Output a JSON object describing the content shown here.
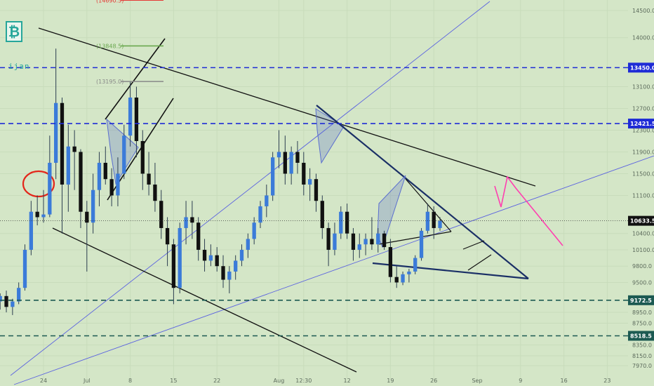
{
  "logo": {
    "glyph": "₿",
    "color": "#26a69a"
  },
  "username": "ijan",
  "chart_data": {
    "type": "candlestick",
    "title": "",
    "xlabel": "",
    "ylabel": "",
    "ylim": [
      7870,
      14800
    ],
    "y_ticks": [
      {
        "v": 14500,
        "label": "14500.0"
      },
      {
        "v": 14000,
        "label": "14000.0"
      },
      {
        "v": 13100,
        "label": "13100.0"
      },
      {
        "v": 12700,
        "label": "12700.0"
      },
      {
        "v": 12300,
        "label": "12300.0"
      },
      {
        "v": 11900,
        "label": "11900.0"
      },
      {
        "v": 11500,
        "label": "11500.0"
      },
      {
        "v": 11100,
        "label": "11100.0"
      },
      {
        "v": 10400,
        "label": "10400.0"
      },
      {
        "v": 10100,
        "label": "10100.0"
      },
      {
        "v": 9800,
        "label": "9800.0"
      },
      {
        "v": 9500,
        "label": "9500.0"
      },
      {
        "v": 8950,
        "label": "8950.0"
      },
      {
        "v": 8750,
        "label": "8750.0"
      },
      {
        "v": 8350,
        "label": "8350.0"
      },
      {
        "v": 8150,
        "label": "8150.0"
      },
      {
        "v": 7970,
        "label": "7970.0"
      }
    ],
    "x_ticks": [
      {
        "day": 24,
        "label": "24"
      },
      {
        "day": 31,
        "label": "Jul"
      },
      {
        "day": 38,
        "label": "8"
      },
      {
        "day": 45,
        "label": "15"
      },
      {
        "day": 52,
        "label": "22"
      },
      {
        "day": 62,
        "label": "Aug"
      },
      {
        "day": 66,
        "label": "12:30"
      },
      {
        "day": 73,
        "label": "12"
      },
      {
        "day": 80,
        "label": "19"
      },
      {
        "day": 87,
        "label": "26"
      },
      {
        "day": 94,
        "label": "Sep"
      },
      {
        "day": 101,
        "label": "9"
      },
      {
        "day": 108,
        "label": "16"
      },
      {
        "day": 115,
        "label": "23"
      }
    ],
    "horizontal_levels": [
      {
        "value": 13450.0,
        "label": "13450.0",
        "style": "dashed",
        "color": "#1e2bd6"
      },
      {
        "value": 12421.5,
        "label": "12421.5",
        "style": "dashed",
        "color": "#1e2bd6"
      },
      {
        "value": 9172.5,
        "label": "9172.5",
        "style": "dashed",
        "color": "#1c5a52"
      },
      {
        "value": 8518.5,
        "label": "8518.5",
        "style": "dashed",
        "color": "#1c5a52"
      }
    ],
    "current_price": {
      "value": 10633.5,
      "label": "10633.5"
    },
    "price_annotations": [
      {
        "value": 14690.5,
        "label": "(14690.5)",
        "color": "#e53935"
      },
      {
        "value": 13848.5,
        "label": "(13848.5)",
        "color": "#6aa84f"
      },
      {
        "value": 13195.0,
        "label": "(13195.0)",
        "color": "#888888"
      }
    ],
    "candles": [
      {
        "day": 17,
        "o": 9150,
        "h": 9300,
        "l": 9000,
        "c": 9250
      },
      {
        "day": 18,
        "o": 9250,
        "h": 9350,
        "l": 8950,
        "c": 9050
      },
      {
        "day": 19,
        "o": 9050,
        "h": 9200,
        "l": 8900,
        "c": 9150
      },
      {
        "day": 20,
        "o": 9150,
        "h": 9500,
        "l": 9100,
        "c": 9400
      },
      {
        "day": 21,
        "o": 9400,
        "h": 10200,
        "l": 9350,
        "c": 10100
      },
      {
        "day": 22,
        "o": 10100,
        "h": 11000,
        "l": 10000,
        "c": 10800
      },
      {
        "day": 23,
        "o": 10800,
        "h": 11100,
        "l": 10550,
        "c": 10700
      },
      {
        "day": 24,
        "o": 10700,
        "h": 11200,
        "l": 10600,
        "c": 10750
      },
      {
        "day": 25,
        "o": 10750,
        "h": 12200,
        "l": 10700,
        "c": 11700
      },
      {
        "day": 26,
        "o": 11700,
        "h": 13800,
        "l": 11400,
        "c": 12800
      },
      {
        "day": 27,
        "o": 12800,
        "h": 12900,
        "l": 10400,
        "c": 11300
      },
      {
        "day": 28,
        "o": 11300,
        "h": 12400,
        "l": 10800,
        "c": 12000
      },
      {
        "day": 29,
        "o": 12000,
        "h": 12300,
        "l": 11200,
        "c": 11900
      },
      {
        "day": 30,
        "o": 11900,
        "h": 11950,
        "l": 10500,
        "c": 10800
      },
      {
        "day": 31,
        "o": 10800,
        "h": 11000,
        "l": 9700,
        "c": 10600
      },
      {
        "day": 32,
        "o": 10600,
        "h": 11500,
        "l": 10400,
        "c": 11200
      },
      {
        "day": 33,
        "o": 11200,
        "h": 11900,
        "l": 10900,
        "c": 11700
      },
      {
        "day": 34,
        "o": 11700,
        "h": 12000,
        "l": 11300,
        "c": 11400
      },
      {
        "day": 35,
        "o": 11400,
        "h": 11600,
        "l": 10900,
        "c": 11100
      },
      {
        "day": 36,
        "o": 11100,
        "h": 11800,
        "l": 10900,
        "c": 11500
      },
      {
        "day": 37,
        "o": 11500,
        "h": 12400,
        "l": 11400,
        "c": 12200
      },
      {
        "day": 38,
        "o": 12200,
        "h": 13200,
        "l": 12000,
        "c": 12900
      },
      {
        "day": 39,
        "o": 12900,
        "h": 13100,
        "l": 11800,
        "c": 12100
      },
      {
        "day": 40,
        "o": 12100,
        "h": 12300,
        "l": 11200,
        "c": 11500
      },
      {
        "day": 41,
        "o": 11500,
        "h": 11900,
        "l": 11100,
        "c": 11300
      },
      {
        "day": 42,
        "o": 11300,
        "h": 11700,
        "l": 10800,
        "c": 11000
      },
      {
        "day": 43,
        "o": 11000,
        "h": 11200,
        "l": 10300,
        "c": 10500
      },
      {
        "day": 44,
        "o": 10500,
        "h": 10700,
        "l": 9800,
        "c": 10200
      },
      {
        "day": 45,
        "o": 10200,
        "h": 10300,
        "l": 9100,
        "c": 9400
      },
      {
        "day": 46,
        "o": 9400,
        "h": 10600,
        "l": 9300,
        "c": 10500
      },
      {
        "day": 47,
        "o": 10500,
        "h": 11000,
        "l": 10200,
        "c": 10700
      },
      {
        "day": 48,
        "o": 10700,
        "h": 11000,
        "l": 10300,
        "c": 10600
      },
      {
        "day": 49,
        "o": 10600,
        "h": 10700,
        "l": 9900,
        "c": 10100
      },
      {
        "day": 50,
        "o": 10100,
        "h": 10300,
        "l": 9700,
        "c": 9900
      },
      {
        "day": 51,
        "o": 9900,
        "h": 10200,
        "l": 9800,
        "c": 10000
      },
      {
        "day": 52,
        "o": 10000,
        "h": 10150,
        "l": 9700,
        "c": 9800
      },
      {
        "day": 53,
        "o": 9800,
        "h": 10000,
        "l": 9400,
        "c": 9550
      },
      {
        "day": 54,
        "o": 9550,
        "h": 9800,
        "l": 9300,
        "c": 9700
      },
      {
        "day": 55,
        "o": 9700,
        "h": 10000,
        "l": 9550,
        "c": 9900
      },
      {
        "day": 56,
        "o": 9900,
        "h": 10200,
        "l": 9800,
        "c": 10100
      },
      {
        "day": 57,
        "o": 10100,
        "h": 10400,
        "l": 9950,
        "c": 10300
      },
      {
        "day": 58,
        "o": 10300,
        "h": 10700,
        "l": 10200,
        "c": 10600
      },
      {
        "day": 59,
        "o": 10600,
        "h": 11000,
        "l": 10500,
        "c": 10900
      },
      {
        "day": 60,
        "o": 10900,
        "h": 11300,
        "l": 10700,
        "c": 11100
      },
      {
        "day": 61,
        "o": 11100,
        "h": 11900,
        "l": 11000,
        "c": 11800
      },
      {
        "day": 62,
        "o": 11800,
        "h": 12300,
        "l": 11600,
        "c": 11900
      },
      {
        "day": 63,
        "o": 11900,
        "h": 12200,
        "l": 11300,
        "c": 11500
      },
      {
        "day": 64,
        "o": 11500,
        "h": 12000,
        "l": 11300,
        "c": 11900
      },
      {
        "day": 65,
        "o": 11900,
        "h": 12100,
        "l": 11500,
        "c": 11700
      },
      {
        "day": 66,
        "o": 11700,
        "h": 11900,
        "l": 11100,
        "c": 11300
      },
      {
        "day": 67,
        "o": 11300,
        "h": 11600,
        "l": 11000,
        "c": 11400
      },
      {
        "day": 68,
        "o": 11400,
        "h": 11500,
        "l": 10800,
        "c": 11000
      },
      {
        "day": 69,
        "o": 11000,
        "h": 11100,
        "l": 10300,
        "c": 10500
      },
      {
        "day": 70,
        "o": 10500,
        "h": 10600,
        "l": 9800,
        "c": 10100
      },
      {
        "day": 71,
        "o": 10100,
        "h": 10600,
        "l": 10000,
        "c": 10400
      },
      {
        "day": 72,
        "o": 10400,
        "h": 10900,
        "l": 10300,
        "c": 10800
      },
      {
        "day": 73,
        "o": 10800,
        "h": 10950,
        "l": 10300,
        "c": 10400
      },
      {
        "day": 74,
        "o": 10400,
        "h": 10500,
        "l": 9900,
        "c": 10100
      },
      {
        "day": 75,
        "o": 10100,
        "h": 10400,
        "l": 9950,
        "c": 10200
      },
      {
        "day": 76,
        "o": 10200,
        "h": 10400,
        "l": 10000,
        "c": 10300
      },
      {
        "day": 77,
        "o": 10300,
        "h": 10700,
        "l": 10100,
        "c": 10200
      },
      {
        "day": 78,
        "o": 10200,
        "h": 10500,
        "l": 10050,
        "c": 10400
      },
      {
        "day": 79,
        "o": 10400,
        "h": 10450,
        "l": 10100,
        "c": 10150
      },
      {
        "day": 80,
        "o": 10150,
        "h": 10300,
        "l": 9500,
        "c": 9600
      },
      {
        "day": 81,
        "o": 9600,
        "h": 9800,
        "l": 9400,
        "c": 9500
      },
      {
        "day": 82,
        "o": 9500,
        "h": 9700,
        "l": 9450,
        "c": 9650
      },
      {
        "day": 83,
        "o": 9650,
        "h": 9750,
        "l": 9500,
        "c": 9700
      },
      {
        "day": 84,
        "o": 9700,
        "h": 10000,
        "l": 9650,
        "c": 9950
      },
      {
        "day": 85,
        "o": 9950,
        "h": 10500,
        "l": 9900,
        "c": 10450
      },
      {
        "day": 86,
        "o": 10450,
        "h": 10950,
        "l": 10400,
        "c": 10800
      },
      {
        "day": 87,
        "o": 10800,
        "h": 10900,
        "l": 10300,
        "c": 10500
      },
      {
        "day": 88,
        "o": 10500,
        "h": 10700,
        "l": 10450,
        "c": 10633.5
      }
    ]
  }
}
